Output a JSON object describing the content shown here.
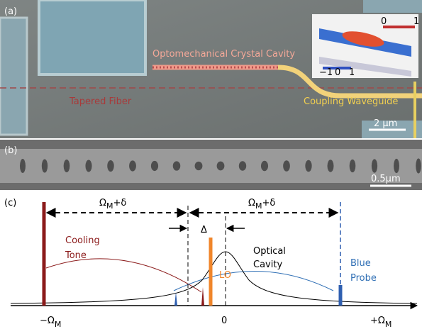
{
  "panel_a": {
    "label": "(a)",
    "cavity": "Optomechanical Crystal Cavity",
    "fiber": "Tapered Fiber",
    "waveguide": "Coupling Waveguide",
    "scale": "2 μm",
    "inset_top": [
      "0",
      "1"
    ],
    "inset_bottom": [
      "−1",
      "0",
      "1"
    ]
  },
  "panel_b": {
    "label": "(b)",
    "scale": "0.5μm"
  },
  "panel_c": {
    "label": "(c)",
    "span_left": {
      "main": "Ω",
      "sub": "M",
      "rest": "+δ"
    },
    "span_right": {
      "main": "Ω",
      "sub": "M",
      "rest": "+δ"
    },
    "delta": "Δ",
    "cooling": [
      "Cooling",
      "Tone"
    ],
    "cavity": [
      "Optical",
      "Cavity"
    ],
    "lo": "LO",
    "probe": [
      "Blue",
      "Probe"
    ],
    "axis": [
      {
        "main": "−Ω",
        "sub": "M"
      },
      {
        "main": "0",
        "sub": ""
      },
      {
        "main": "+Ω",
        "sub": "M"
      }
    ]
  }
}
